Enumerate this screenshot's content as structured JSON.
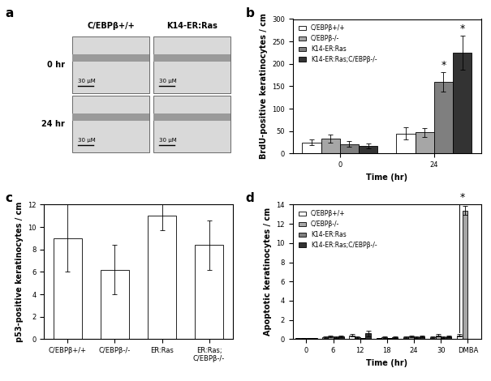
{
  "image_panel": {
    "label": "a",
    "columns": [
      "C/EBPβ+/+",
      "K14-ER:Ras"
    ],
    "rows": [
      "0 hr",
      "24 hr"
    ],
    "scale_bar": "30 μM"
  },
  "chart_data": [
    {
      "label": "b",
      "type": "bar",
      "x_label": "Time (hr)",
      "y_label": "BrdU-positive keratinocytes / cm",
      "categories": [
        "0",
        "24"
      ],
      "series": [
        {
          "name": "C/EBPβ+/+",
          "color": "#ffffff",
          "values": [
            25,
            45
          ],
          "errors": [
            6,
            13
          ]
        },
        {
          "name": "C/EBPβ-/-",
          "color": "#a6a6a6",
          "values": [
            33,
            47
          ],
          "errors": [
            9,
            10
          ]
        },
        {
          "name": "K14-ER:Ras",
          "color": "#7f7f7f",
          "values": [
            21,
            160
          ],
          "errors": [
            6,
            22
          ]
        },
        {
          "name": "K14-ER:Ras;C/EBPβ-/-",
          "color": "#333333",
          "values": [
            17,
            225
          ],
          "errors": [
            6,
            38
          ]
        }
      ],
      "annotations": [
        {
          "text": "*",
          "category": "24",
          "series": [
            "K14-ER:Ras"
          ]
        },
        {
          "text": "*",
          "category": "24",
          "series": [
            "K14-ER:Ras;C/EBPβ-/-"
          ]
        }
      ],
      "ylim": [
        0,
        300
      ],
      "yticks": [
        0,
        50,
        100,
        150,
        200,
        250,
        300
      ],
      "legend": "upper left"
    },
    {
      "label": "c",
      "type": "bar",
      "y_label": "p53-positive keratinocytes / cm",
      "categories": [
        "C/EBPβ+/+",
        "C/EBPβ-/-",
        "ER:Ras",
        "ER:Ras;\nC/EBPβ-/-"
      ],
      "series": [
        {
          "color": "#ffffff",
          "values": [
            9,
            6.2,
            11,
            8.4
          ],
          "errors": [
            3,
            2.2,
            1.3,
            2.2
          ]
        }
      ],
      "ylim": [
        0,
        12
      ],
      "yticks": [
        0,
        2,
        4,
        6,
        8,
        10,
        12
      ]
    },
    {
      "label": "d",
      "type": "bar",
      "x_label": "Time (hr)",
      "y_label": "Apoptotic keratinocytes / cm",
      "categories": [
        "0",
        "6",
        "12",
        "18",
        "24",
        "30",
        "DMBA"
      ],
      "series": [
        {
          "name": "C/EBPβ+/+",
          "color": "#ffffff",
          "values": [
            0.1,
            0.2,
            0.4,
            0.1,
            0.2,
            0.2,
            0.4
          ],
          "errors": [
            0.05,
            0.05,
            0.1,
            0.05,
            0.05,
            0.05,
            0.1
          ]
        },
        {
          "name": "C/EBPβ-/-",
          "color": "#a6a6a6",
          "values": [
            0.1,
            0.3,
            0.2,
            0.2,
            0.3,
            0.4,
            13.4
          ],
          "errors": [
            0.05,
            0.1,
            0.05,
            0.05,
            0.1,
            0.1,
            0.5
          ]
        },
        {
          "name": "K14-ER:Ras",
          "color": "#7f7f7f",
          "values": [
            0.1,
            0.2,
            0.1,
            0.1,
            0.2,
            0.2,
            null
          ],
          "errors": [
            0.05,
            0.05,
            0.05,
            0.05,
            0.05,
            0.05,
            null
          ]
        },
        {
          "name": "K14-ER:Ras;C/EBPβ-/-",
          "color": "#333333",
          "values": [
            0.1,
            0.3,
            0.6,
            0.2,
            0.3,
            0.3,
            null
          ],
          "errors": [
            0.05,
            0.1,
            0.3,
            0.05,
            0.1,
            0.1,
            null
          ]
        }
      ],
      "annotations": [
        {
          "text": "*",
          "category": "DMBA",
          "series": [
            "C/EBPβ+/+",
            "C/EBPβ-/-"
          ]
        }
      ],
      "ylim": [
        0,
        14
      ],
      "yticks": [
        0,
        2,
        4,
        6,
        8,
        10,
        12,
        14
      ],
      "legend": "upper left"
    }
  ]
}
